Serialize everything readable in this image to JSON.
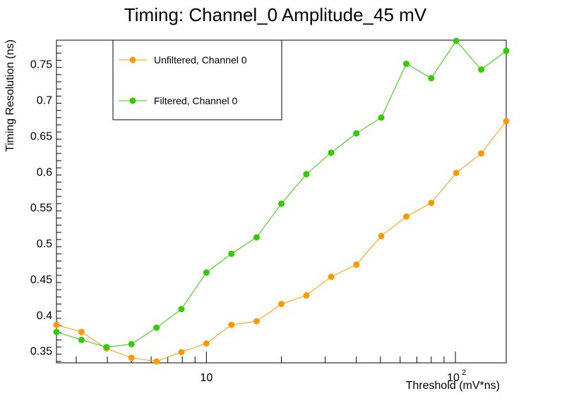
{
  "chart_data": {
    "type": "line",
    "title": "Timing: Channel_0 Amplitude_45 mV",
    "xlabel": "Threshold (mV*ns)",
    "ylabel": "Timing Resolution (ns)",
    "x_scale": "log",
    "xlim": [
      2.5,
      160
    ],
    "ylim": [
      0.333,
      0.783
    ],
    "x_tick_labels": [
      {
        "value": 10,
        "base": "10",
        "exp": ""
      },
      {
        "value": 100,
        "base": "10",
        "exp": "2"
      }
    ],
    "y_ticks": [
      0.35,
      0.4,
      0.45,
      0.5,
      0.55,
      0.6,
      0.65,
      0.7,
      0.75
    ],
    "y_tick_labels": [
      "0.35",
      "0.4",
      "0.45",
      "0.5",
      "0.55",
      "0.6",
      "0.65",
      "0.7",
      "0.75"
    ],
    "legend_position": "top-left",
    "grid": false,
    "x": [
      2.5,
      3.15,
      3.97,
      5.0,
      6.3,
      7.94,
      10.0,
      12.6,
      15.9,
      20.0,
      25.2,
      31.7,
      40.0,
      50.4,
      63.5,
      80.0,
      100.8,
      127.0,
      160.0
    ],
    "series": [
      {
        "name": "Unfiltered, Channel 0",
        "color": "#ff9900",
        "values": [
          0.386,
          0.376,
          0.353,
          0.34,
          0.335,
          0.348,
          0.36,
          0.386,
          0.391,
          0.415,
          0.427,
          0.453,
          0.47,
          0.51,
          0.537,
          0.556,
          0.598,
          0.625,
          0.67
        ]
      },
      {
        "name": "Filtered, Channel 0",
        "color": "#33cc00",
        "values": [
          0.376,
          0.365,
          0.355,
          0.359,
          0.382,
          0.408,
          0.459,
          0.485,
          0.508,
          0.555,
          0.596,
          0.626,
          0.653,
          0.675,
          0.75,
          0.73,
          0.782,
          0.742,
          0.768
        ]
      }
    ]
  }
}
